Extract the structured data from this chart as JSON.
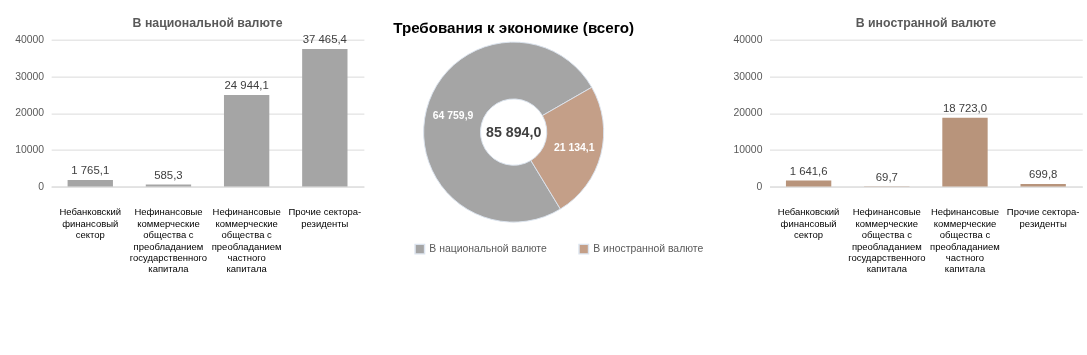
{
  "chart_data": [
    {
      "type": "bar",
      "title": "В национальной валюте",
      "categories": [
        "Небанковский финансовый сектор",
        "Нефинансовые коммерческие общества с преобладанием государственного капитала",
        "Нефинансовые коммерческие общества с преобладанием частного капитала",
        "Прочие сектора-резиденты"
      ],
      "values": [
        1765.1,
        585.3,
        24944.1,
        37465.4
      ],
      "value_labels": [
        "1 765,1",
        "585,3",
        "24 944,1",
        "37 465,4"
      ],
      "color": "#a5a5a5",
      "ylim": [
        0,
        40000
      ],
      "yticks": [
        0,
        10000,
        20000,
        30000,
        40000
      ],
      "grid": "y"
    },
    {
      "type": "donut",
      "title": "Требования к экономике (всего)",
      "categories": [
        "В национальной валюте",
        "В иностранной валюте"
      ],
      "values": [
        64759.9,
        21134.1
      ],
      "value_labels": [
        "64 759,9",
        "21 134,1"
      ],
      "colors": [
        "#a5a5a5",
        "#c49f88"
      ],
      "annotations": [
        "85 894,0"
      ],
      "legend": "bottom"
    },
    {
      "type": "bar",
      "title": "В иностранной валюте",
      "categories": [
        "Небанковский финансовый сектор",
        "Нефинансовые коммерческие общества с преобладанием государственного капитала",
        "Нефинансовые коммерческие общества с преобладанием частного капитала",
        "Прочие сектора-резиденты"
      ],
      "values": [
        1641.6,
        69.7,
        18723.0,
        699.8
      ],
      "value_labels": [
        "1 641,6",
        "69,7",
        "18 723,0",
        "699,8"
      ],
      "color": "#b8947b",
      "ylim": [
        0,
        40000
      ],
      "yticks": [
        0,
        10000,
        20000,
        30000,
        40000
      ],
      "grid": "y"
    }
  ]
}
